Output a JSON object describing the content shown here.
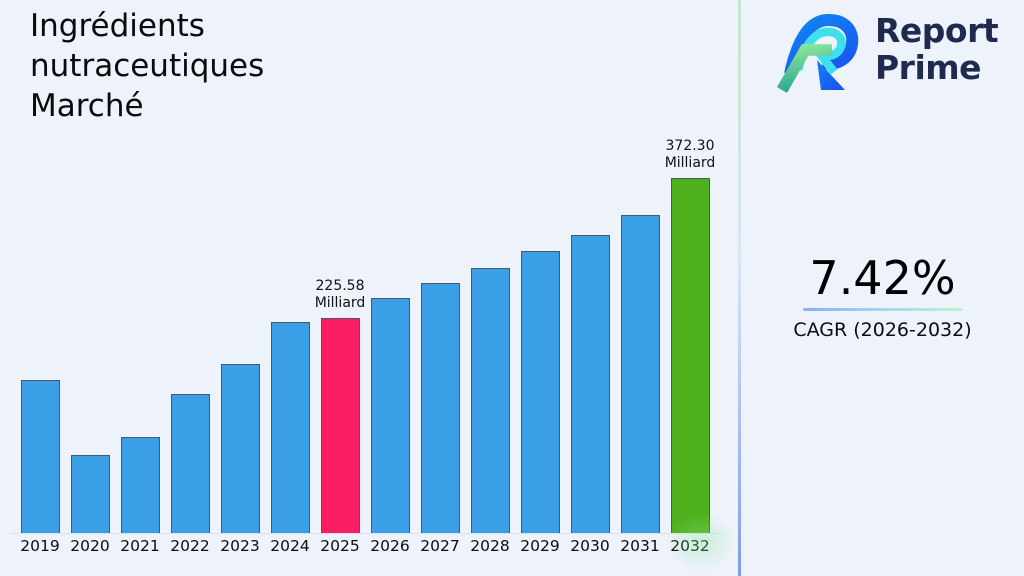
{
  "page": {
    "background_color": "#edf2fb"
  },
  "header": {
    "title": "Ingrédients nutraceutiques Marché",
    "title_lines": [
      "Ingrédients",
      "nutraceutiques",
      "Marché"
    ]
  },
  "brand": {
    "name_line1": "Report",
    "name_line2": "Prime",
    "text_color": "#1e2a4e",
    "logo_colors": {
      "blue": "#1766f1",
      "blue_light": "#0f86f3",
      "cyan": "#3fe0ee",
      "green_light": "#9bef9d",
      "green_teal": "#2aa98c"
    }
  },
  "stats": {
    "cagr_value": "7.42%",
    "cagr_label": "CAGR (2026-2032)",
    "underline_gradient": [
      "#8cabf5",
      "#c2f0cd"
    ]
  },
  "chart_data": {
    "type": "bar",
    "title": "Ingrédients nutraceutiques Marché",
    "unit": "Milliard",
    "categories": [
      "2019",
      "2020",
      "2021",
      "2022",
      "2023",
      "2024",
      "2025",
      "2026",
      "2027",
      "2028",
      "2029",
      "2030",
      "2031",
      "2032"
    ],
    "values": [
      160.5,
      81.8,
      100.7,
      145.8,
      177.2,
      221.3,
      225.58,
      246.4,
      262.2,
      277.9,
      295.7,
      312.5,
      333.5,
      372.3
    ],
    "values_note": "2025 and 2032 are labeled on the chart; other values estimated from bar heights",
    "labeled_points": [
      {
        "category": "2025",
        "label": "225.58 Milliard"
      },
      {
        "category": "2032",
        "label": "372.30 Milliard"
      }
    ],
    "highlight_current_index": 6,
    "highlight_final_index": 13,
    "bar_colors": {
      "default": "#3b9fe8",
      "highlight_current": "#fb1e63",
      "highlight_final": "#4fb01d"
    },
    "bar_edge_color": "#4d5866",
    "xlabel": "",
    "ylabel": "",
    "ylim": [
      0,
      400
    ],
    "gridlines": false,
    "legend": false,
    "cagr": {
      "value_pct": 7.42,
      "period": "2026-2032"
    }
  }
}
